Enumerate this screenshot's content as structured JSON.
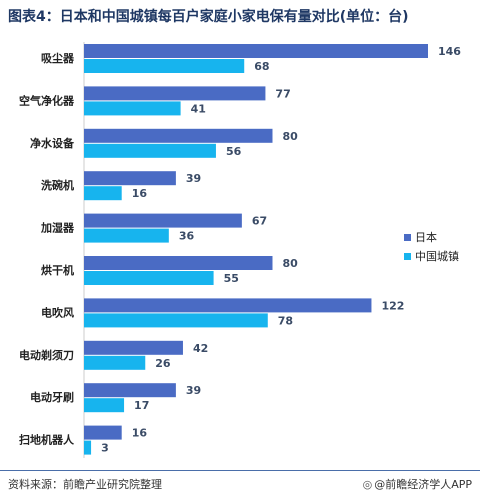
{
  "title": "图表4：日本和中国城镇每百户家庭小家电保有量对比(单位：台)",
  "source": "资料来源：前瞻产业研究院整理",
  "brand": "@前瞻经济学人APP",
  "chart_data": {
    "type": "bar",
    "orientation": "horizontal",
    "title": "图表4：日本和中国城镇每百户家庭小家电保有量对比(单位：台)",
    "categories": [
      "吸尘器",
      "空气净化器",
      "净水设备",
      "洗碗机",
      "加湿器",
      "烘干机",
      "电吹风",
      "电动剃须刀",
      "电动牙刷",
      "扫地机器人"
    ],
    "series": [
      {
        "name": "日本",
        "color": "#4a6bc4",
        "values": [
          146,
          77,
          80,
          39,
          67,
          80,
          122,
          42,
          39,
          16
        ]
      },
      {
        "name": "中国城镇",
        "color": "#17b4ee",
        "values": [
          68,
          41,
          56,
          16,
          36,
          55,
          78,
          26,
          17,
          3
        ]
      }
    ],
    "xlim": [
      0,
      146
    ],
    "grid": false,
    "legend_position": "right",
    "data_labels": true
  }
}
